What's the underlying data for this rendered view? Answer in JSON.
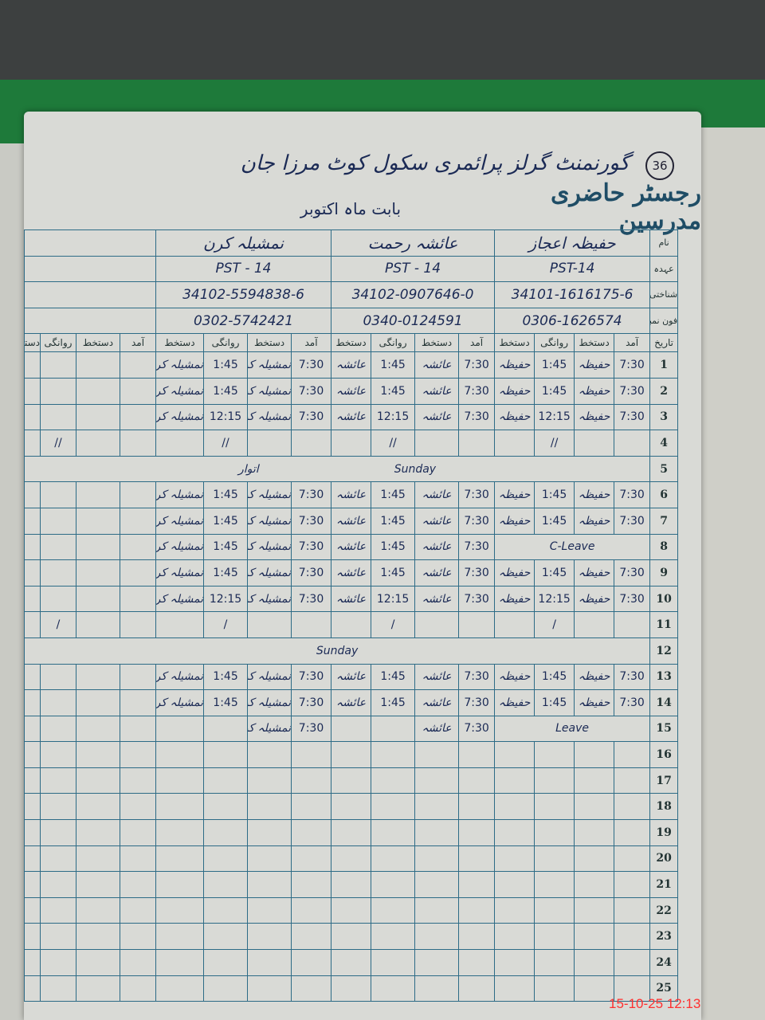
{
  "page_number": "36",
  "register_title": "رجسٹر حاضری مدرسین",
  "school_name": "گورنمنٹ گرلز پرائمری سکول کوٹ مرزا جان",
  "month_label": "بابت ماہ",
  "month_value": "اکتوبر",
  "row_labels": {
    "name": "نام",
    "designation": "عہدہ",
    "cnic": "شناختی کارڈ نمبر",
    "phone": "فون نمبر",
    "date": "تاریخ"
  },
  "column_headers": {
    "arrival": "آمد",
    "signature": "دستخط",
    "departure": "روانگی"
  },
  "teachers": [
    {
      "name": "حفیظہ اعجاز",
      "designation": "PST-14",
      "cnic": "34101-1616175-6",
      "phone": "0306-1626574"
    },
    {
      "name": "عائشہ رحمت",
      "designation": "PST - 14",
      "cnic": "34102-0907646-0",
      "phone": "0340-0124591"
    },
    {
      "name": "نمشیلہ کرن",
      "designation": "PST - 14",
      "cnic": "34102-5594838-6",
      "phone": "0302-5742421"
    },
    {
      "name": "",
      "designation": "",
      "cnic": "",
      "phone": ""
    }
  ],
  "days": [
    {
      "date": "1",
      "t": [
        [
          "7:30",
          "حفیظہ",
          "1:45",
          "حفیظہ"
        ],
        [
          "7:30",
          "عائشہ",
          "1:45",
          "عائشہ"
        ],
        [
          "7:30",
          "نمشیلہ کرن",
          "1:45",
          "نمشیلہ کرن"
        ]
      ]
    },
    {
      "date": "2",
      "t": [
        [
          "7:30",
          "حفیظہ",
          "1:45",
          "حفیظہ"
        ],
        [
          "7:30",
          "عائشہ",
          "1:45",
          "عائشہ"
        ],
        [
          "7:30",
          "نمشیلہ کرن",
          "1:45",
          "نمشیلہ کرن"
        ]
      ]
    },
    {
      "date": "3",
      "t": [
        [
          "7:30",
          "حفیظہ",
          "12:15",
          "حفیظہ"
        ],
        [
          "7:30",
          "عائشہ",
          "12:15",
          "عائشہ"
        ],
        [
          "7:30",
          "نمشیلہ کرن",
          "12:15",
          "نمشیلہ کرن"
        ]
      ]
    },
    {
      "date": "4",
      "marks": "//"
    },
    {
      "date": "5",
      "note": "Sunday",
      "note2": "اتوار",
      "red": true
    },
    {
      "date": "6",
      "t": [
        [
          "7:30",
          "حفیظہ",
          "1:45",
          "حفیظہ"
        ],
        [
          "7:30",
          "عائشہ",
          "1:45",
          "عائشہ"
        ],
        [
          "7:30",
          "نمشیلہ کرن",
          "1:45",
          "نمشیلہ کرن"
        ]
      ]
    },
    {
      "date": "7",
      "t": [
        [
          "7:30",
          "حفیظہ",
          "1:45",
          "حفیظہ"
        ],
        [
          "7:30",
          "عائشہ",
          "1:45",
          "عائشہ"
        ],
        [
          "7:30",
          "نمشیلہ کرن",
          "1:45",
          "نمشیلہ کرن"
        ]
      ]
    },
    {
      "date": "8",
      "t": [
        null,
        [
          "7:30",
          "عائشہ",
          "1:45",
          "عائشہ"
        ],
        [
          "7:30",
          "نمشیلہ کرن",
          "1:45",
          "نمشیلہ کرن"
        ]
      ],
      "leave0": "C-Leave"
    },
    {
      "date": "9",
      "t": [
        [
          "7:30",
          "حفیظہ",
          "1:45",
          "حفیظہ"
        ],
        [
          "7:30",
          "عائشہ",
          "1:45",
          "عائشہ"
        ],
        [
          "7:30",
          "نمشیلہ کرن",
          "1:45",
          "نمشیلہ کرن"
        ]
      ]
    },
    {
      "date": "10",
      "t": [
        [
          "7:30",
          "حفیظہ",
          "12:15",
          "حفیظہ"
        ],
        [
          "7:30",
          "عائشہ",
          "12:15",
          "عائشہ"
        ],
        [
          "7:30",
          "نمشیلہ کرن",
          "12:15",
          "نمشیلہ کرن"
        ]
      ]
    },
    {
      "date": "11",
      "marks": "/"
    },
    {
      "date": "12",
      "note": "Sunday",
      "red": true
    },
    {
      "date": "13",
      "t": [
        [
          "7:30",
          "حفیظہ",
          "1:45",
          "حفیظہ"
        ],
        [
          "7:30",
          "عائشہ",
          "1:45",
          "عائشہ"
        ],
        [
          "7:30",
          "نمشیلہ کرن",
          "1:45",
          "نمشیلہ کرن"
        ]
      ]
    },
    {
      "date": "14",
      "t": [
        [
          "7:30",
          "حفیظہ",
          "1:45",
          "حفیظہ"
        ],
        [
          "7:30",
          "عائشہ",
          "1:45",
          "عائشہ"
        ],
        [
          "7:30",
          "نمشیلہ کرن",
          "1:45",
          "نمشیلہ کرن"
        ]
      ]
    },
    {
      "date": "15",
      "t": [
        null,
        [
          "7:30",
          "عائشہ",
          "",
          ""
        ],
        [
          "7:30",
          "نمشیلہ کرن",
          "",
          ""
        ]
      ],
      "leave0": "Leave"
    },
    {
      "date": "16"
    },
    {
      "date": "17"
    },
    {
      "date": "18"
    },
    {
      "date": "19"
    },
    {
      "date": "20"
    },
    {
      "date": "21"
    },
    {
      "date": "22"
    },
    {
      "date": "23"
    },
    {
      "date": "24"
    },
    {
      "date": "25"
    }
  ],
  "camera_timestamp": "15-10-25 12:13",
  "colors": {
    "ink": "#1b2a55",
    "red_ink": "#b8384a",
    "grid_lines": "#2d6b86",
    "paper": "#d9dad6",
    "folder": "#1e7a3a",
    "timestamp": "#ff3030"
  }
}
